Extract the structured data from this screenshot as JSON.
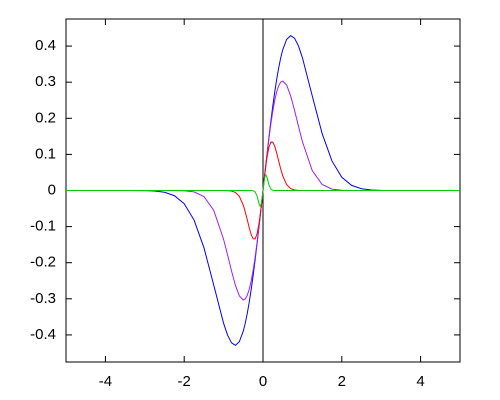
{
  "chart_data": {
    "type": "line",
    "x": [
      -5,
      -4,
      -3.5,
      -3,
      -2.75,
      -2.5,
      -2.25,
      -2,
      -1.75,
      -1.5,
      -1.25,
      -1,
      -0.9,
      -0.8,
      -0.7,
      -0.6,
      -0.5,
      -0.45,
      -0.4,
      -0.35,
      -0.3,
      -0.25,
      -0.2,
      -0.15,
      -0.1,
      -0.075,
      -0.05,
      -0.025,
      0,
      0.025,
      0.05,
      0.075,
      0.1,
      0.15,
      0.2,
      0.25,
      0.3,
      0.35,
      0.4,
      0.45,
      0.5,
      0.6,
      0.7,
      0.8,
      0.9,
      1,
      1.25,
      1.5,
      1.75,
      2,
      2.25,
      2.5,
      2.75,
      3,
      3.5,
      4,
      5
    ],
    "series": [
      {
        "color": "#0000ff",
        "values": [
          0,
          0,
          0,
          -0.0004,
          -0.0014,
          -0.0048,
          -0.0142,
          -0.0366,
          -0.0818,
          -0.1581,
          -0.262,
          -0.3679,
          -0.4004,
          -0.4218,
          -0.4288,
          -0.4186,
          -0.3894,
          -0.3675,
          -0.3409,
          -0.3096,
          -0.2742,
          -0.2349,
          -0.1922,
          -0.1467,
          -0.099,
          -0.075,
          -0.05,
          -0.025,
          0,
          0.025,
          0.05,
          0.075,
          0.099,
          0.1467,
          0.1922,
          0.2349,
          0.2742,
          0.3096,
          0.3409,
          0.3675,
          0.3894,
          0.4186,
          0.4288,
          0.4218,
          0.4004,
          0.3679,
          0.262,
          0.1581,
          0.0818,
          0.0366,
          0.0142,
          0.0048,
          0.0014,
          0.0004,
          0,
          0,
          0
        ]
      },
      {
        "color": "#a020f0",
        "values": [
          0,
          0,
          0,
          0,
          0,
          0,
          -0.0001,
          -0.0007,
          -0.0038,
          -0.0167,
          -0.0549,
          -0.1353,
          -0.1781,
          -0.2224,
          -0.2627,
          -0.2921,
          -0.3033,
          -0.3001,
          -0.2905,
          -0.2739,
          -0.2506,
          -0.2206,
          -0.1846,
          -0.1434,
          -0.098,
          -0.0742,
          -0.0498,
          -0.025,
          0,
          0.025,
          0.0498,
          0.0742,
          0.098,
          0.1434,
          0.1846,
          0.2206,
          0.2506,
          0.2739,
          0.2905,
          0.3001,
          0.3033,
          0.2921,
          0.2627,
          0.2224,
          0.1781,
          0.1353,
          0.0549,
          0.0167,
          0.0038,
          0.0007,
          0.0001,
          0,
          0,
          0,
          0,
          0,
          0
        ]
      },
      {
        "color": "#ff0000",
        "values": [
          0,
          0,
          0,
          0,
          0,
          0,
          0,
          0,
          0,
          0,
          0,
          0,
          -0.0003,
          -0.0013,
          -0.0052,
          -0.0164,
          -0.041,
          -0.0594,
          -0.0808,
          -0.1028,
          -0.122,
          -0.1338,
          -0.1341,
          -0.1198,
          -0.0905,
          -0.0709,
          -0.0488,
          -0.0248,
          0,
          0.0248,
          0.0488,
          0.0709,
          0.0905,
          0.1198,
          0.1341,
          0.1338,
          0.122,
          0.1028,
          0.0808,
          0.0594,
          0.041,
          0.0164,
          0.0052,
          0.0013,
          0.0003,
          0,
          0,
          0,
          0,
          0,
          0,
          0,
          0,
          0,
          0,
          0,
          0
        ]
      },
      {
        "color": "#00cc00",
        "values": [
          0,
          0,
          0,
          0,
          0,
          0,
          0,
          0,
          0,
          0,
          0,
          0,
          0,
          0,
          0,
          0,
          0,
          0,
          0,
          0,
          0,
          -0.0005,
          -0.0037,
          -0.0158,
          -0.0368,
          -0.0427,
          -0.0389,
          -0.0235,
          0,
          0.0235,
          0.0389,
          0.0427,
          0.0368,
          0.0158,
          0.0037,
          0.0005,
          0,
          0,
          0,
          0,
          0,
          0,
          0,
          0,
          0,
          0,
          0,
          0,
          0,
          0,
          0,
          0,
          0,
          0,
          0,
          0,
          0
        ]
      }
    ],
    "xlim": [
      -5,
      5
    ],
    "xticks": [
      -4,
      -2,
      0,
      2,
      4
    ],
    "ylim": [
      -0.475,
      0.475
    ],
    "yticks": [
      -0.4,
      -0.3,
      -0.2,
      -0.1,
      0,
      0.1,
      0.2,
      0.3,
      0.4
    ]
  }
}
